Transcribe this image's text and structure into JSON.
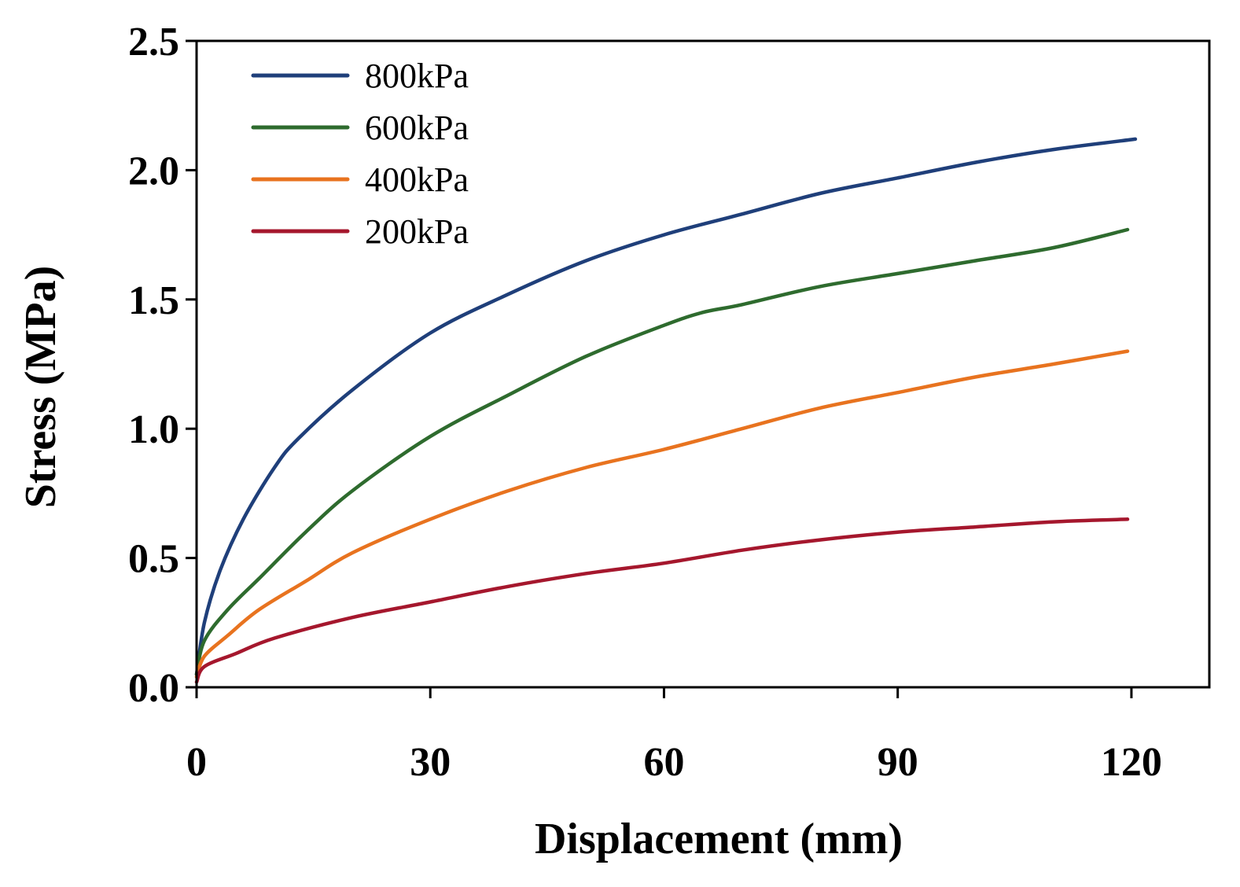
{
  "chart_data": {
    "type": "line",
    "title": "",
    "xlabel": "Displacement (mm)",
    "ylabel": "Stress (MPa)",
    "xlim": [
      0,
      130
    ],
    "ylim": [
      0,
      2.5
    ],
    "xticks": [
      0,
      30,
      60,
      90,
      120
    ],
    "xtick_labels": [
      "0",
      "30",
      "60",
      "90",
      "120"
    ],
    "yticks": [
      0,
      0.5,
      1.0,
      1.5,
      2.0,
      2.5
    ],
    "ytick_labels": [
      "0.0",
      "0.5",
      "1.0",
      "1.5",
      "2.0",
      "2.5"
    ],
    "grid": false,
    "legend_position": "top-left",
    "series": [
      {
        "name": "800kPa",
        "color": "#1f3f7a",
        "x": [
          0,
          1,
          3,
          6,
          10,
          13,
          20,
          30,
          40,
          50,
          60,
          70,
          80,
          90,
          100,
          110,
          120.5
        ],
        "y": [
          0.05,
          0.25,
          0.45,
          0.65,
          0.85,
          0.96,
          1.15,
          1.37,
          1.52,
          1.65,
          1.75,
          1.83,
          1.91,
          1.97,
          2.03,
          2.08,
          2.12
        ]
      },
      {
        "name": "600kPa",
        "color": "#2e6b2e",
        "x": [
          0,
          1,
          4,
          8,
          14,
          20,
          30,
          40,
          50,
          60,
          65,
          70,
          80,
          90,
          100,
          110,
          119.5
        ],
        "y": [
          0.05,
          0.18,
          0.3,
          0.42,
          0.6,
          0.76,
          0.97,
          1.13,
          1.28,
          1.4,
          1.45,
          1.48,
          1.55,
          1.6,
          1.65,
          1.7,
          1.77
        ]
      },
      {
        "name": "400kPa",
        "color": "#e8731f",
        "x": [
          0,
          1,
          4,
          8,
          14,
          20,
          30,
          40,
          50,
          60,
          70,
          80,
          90,
          100,
          110,
          119.5
        ],
        "y": [
          0.04,
          0.12,
          0.2,
          0.3,
          0.41,
          0.52,
          0.65,
          0.76,
          0.85,
          0.92,
          1.0,
          1.08,
          1.14,
          1.2,
          1.25,
          1.3
        ]
      },
      {
        "name": "200kPa",
        "color": "#a5172d",
        "x": [
          0,
          1,
          5,
          10,
          20,
          30,
          40,
          50,
          60,
          70,
          80,
          90,
          100,
          110,
          119.5
        ],
        "y": [
          0.02,
          0.08,
          0.13,
          0.19,
          0.27,
          0.33,
          0.39,
          0.44,
          0.48,
          0.53,
          0.57,
          0.6,
          0.62,
          0.64,
          0.65
        ]
      }
    ]
  }
}
